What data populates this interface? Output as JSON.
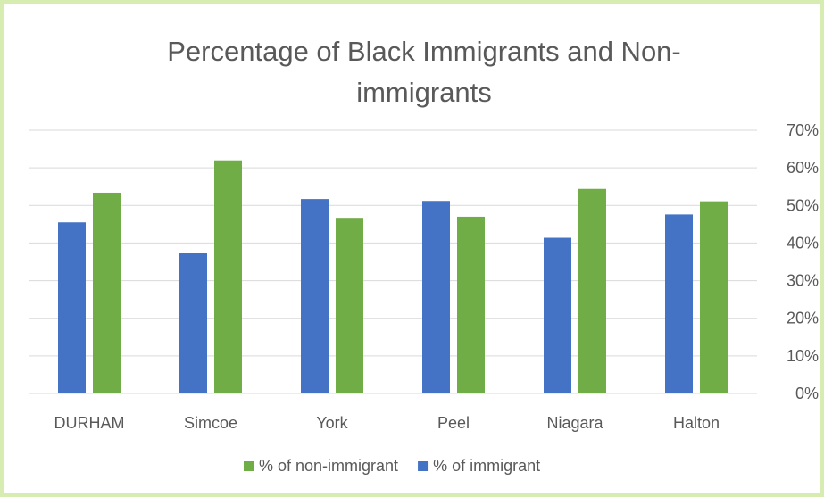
{
  "chart_data": {
    "type": "bar",
    "title": "Percentage of Black Immigrants and Non-immigrants",
    "title_lines": [
      "Percentage of Black Immigrants and Non-",
      "immigrants"
    ],
    "categories": [
      "DURHAM",
      "Simcoe",
      "York",
      "Peel",
      "Niagara",
      "Halton"
    ],
    "series": [
      {
        "name": "% of immigrant",
        "color": "#4472c4",
        "values": [
          45.5,
          37.3,
          51.7,
          51.2,
          41.4,
          47.6
        ]
      },
      {
        "name": "% of non-immigrant",
        "color": "#70ad47",
        "values": [
          53.4,
          62.0,
          46.7,
          47.0,
          54.4,
          51.1
        ]
      }
    ],
    "yticks": [
      "0%",
      "10%",
      "20%",
      "30%",
      "40%",
      "50%",
      "60%",
      "70%"
    ],
    "ylim": [
      0,
      70
    ],
    "y_axis_position": "right",
    "gridlines": true,
    "legend": {
      "position": "bottom",
      "order": [
        "% of non-immigrant",
        "% of immigrant"
      ]
    }
  }
}
